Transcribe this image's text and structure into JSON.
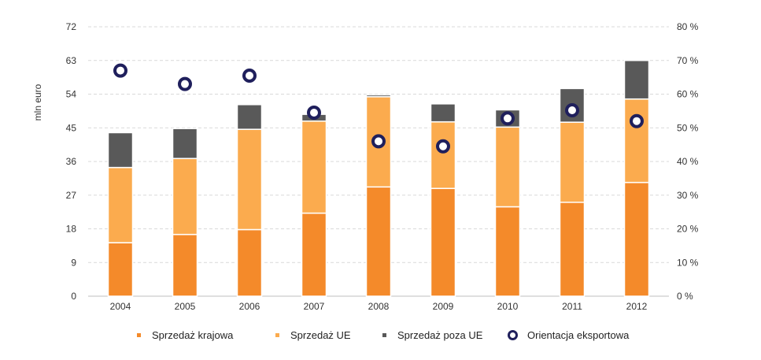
{
  "chart_data": {
    "type": "bar",
    "stacked": true,
    "categories": [
      "2004",
      "2005",
      "2006",
      "2007",
      "2008",
      "2009",
      "2010",
      "2011",
      "2012"
    ],
    "ylabel": "mln euro",
    "ylim": [
      0,
      72
    ],
    "yticks": [
      "0",
      "9",
      "18",
      "27",
      "36",
      "45",
      "54",
      "63",
      "72"
    ],
    "y2lim": [
      0,
      80
    ],
    "y2ticks": [
      "0 %",
      "10 %",
      "20 %",
      "30 %",
      "40 %",
      "50 %",
      "60 %",
      "70 %",
      "80 %"
    ],
    "grid": true,
    "legend_position": "bottom",
    "series": [
      {
        "name": "Sprzedaż krajowa",
        "kind": "bar",
        "color": "#f48a2a",
        "values": [
          14.3,
          16.5,
          17.8,
          22.2,
          29.2,
          28.8,
          23.9,
          25.1,
          30.4
        ]
      },
      {
        "name": "Sprzedaż UE",
        "kind": "bar",
        "color": "#fbab4e",
        "values": [
          20.1,
          20.3,
          26.8,
          24.6,
          24.1,
          17.8,
          21.3,
          21.4,
          22.3
        ]
      },
      {
        "name": "Sprzedaż poza UE",
        "kind": "bar",
        "color": "#595959",
        "values": [
          9.3,
          8.0,
          6.6,
          1.8,
          0.5,
          4.8,
          4.6,
          9.0,
          10.3
        ]
      },
      {
        "name": "Orientacja eksportowa",
        "kind": "scatter",
        "axis": "right",
        "color": "#1f1f5c",
        "values": [
          67.0,
          63.0,
          65.5,
          54.5,
          46.0,
          44.5,
          52.8,
          55.2,
          52.0
        ]
      }
    ]
  }
}
